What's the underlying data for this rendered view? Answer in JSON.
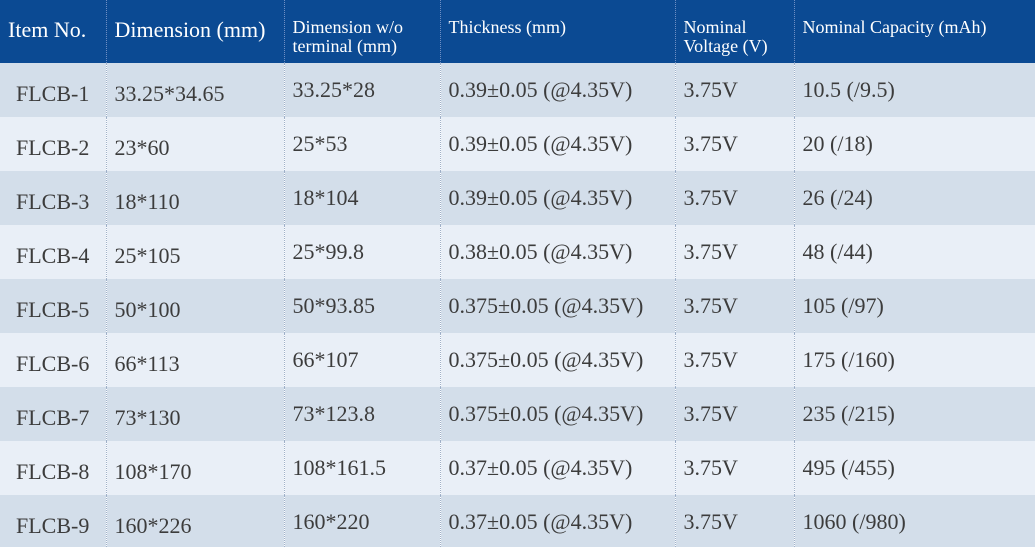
{
  "table": {
    "headers": [
      "Item No.",
      "Dimension (mm)",
      "Dimension w/o\nterminal (mm)",
      "Thickness (mm)",
      "Nominal\nVoltage (V)",
      "Nominal Capacity (mAh)"
    ],
    "rows": [
      [
        "FLCB-1",
        "33.25*34.65",
        "33.25*28",
        "0.39±0.05 (@4.35V)",
        "3.75V",
        "10.5 (/9.5)"
      ],
      [
        "FLCB-2",
        "23*60",
        "25*53",
        "0.39±0.05 (@4.35V)",
        "3.75V",
        "20 (/18)"
      ],
      [
        "FLCB-3",
        "18*110",
        "18*104",
        "0.39±0.05 (@4.35V)",
        "3.75V",
        "26 (/24)"
      ],
      [
        "FLCB-4",
        "25*105",
        "25*99.8",
        "0.38±0.05 (@4.35V)",
        "3.75V",
        "48 (/44)"
      ],
      [
        "FLCB-5",
        "50*100",
        "50*93.85",
        "0.375±0.05 (@4.35V)",
        "3.75V",
        "105 (/97)"
      ],
      [
        "FLCB-6",
        "66*113",
        "66*107",
        "0.375±0.05 (@4.35V)",
        "3.75V",
        "175 (/160)"
      ],
      [
        "FLCB-7",
        "73*130",
        "73*123.8",
        "0.375±0.05 (@4.35V)",
        "3.75V",
        "235 (/215)"
      ],
      [
        "FLCB-8",
        "108*170",
        "108*161.5",
        "0.37±0.05 (@4.35V)",
        "3.75V",
        "495 (/455)"
      ],
      [
        "FLCB-9",
        "160*226",
        "160*220",
        "0.37±0.05 (@4.35V)",
        "3.75V",
        "1060 (/980)"
      ]
    ]
  },
  "colors": {
    "header_bg": "#0b4a93",
    "row_dark": "#d3deea",
    "row_light": "#e9eff7",
    "text": "#3c3c3c"
  }
}
